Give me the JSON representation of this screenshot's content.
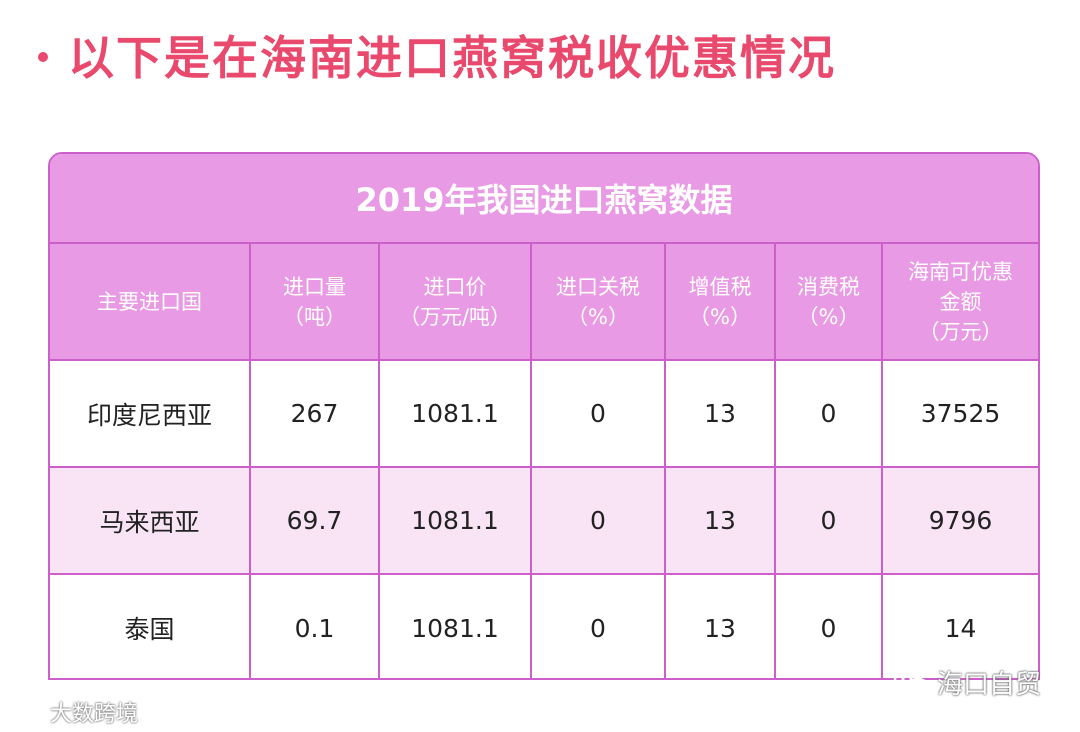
{
  "title": "以下是在海南进口燕窝税收优惠情况",
  "table": {
    "caption": "2019年我国进口燕窝数据",
    "headers": [
      [
        "主要进口国"
      ],
      [
        "进口量",
        "（吨）"
      ],
      [
        "进口价",
        "（万元/吨）"
      ],
      [
        "进口关税",
        "（%）"
      ],
      [
        "增值税",
        "（%）"
      ],
      [
        "消费税",
        "（%）"
      ],
      [
        "海南可优惠",
        "金额",
        "（万元）"
      ]
    ],
    "rows": [
      [
        "印度尼西亚",
        "267",
        "1081.1",
        "0",
        "13",
        "0",
        "37525"
      ],
      [
        "马来西亚",
        "69.7",
        "1081.1",
        "0",
        "13",
        "0",
        "9796"
      ],
      [
        "泰国",
        "0.1",
        "1081.1",
        "0",
        "13",
        "0",
        "14"
      ]
    ]
  },
  "watermarks": {
    "left": "大数跨境",
    "right": "海口自贸",
    "left_icon": "brand-logo-icon",
    "right_icon": "wechat-icon"
  },
  "colors": {
    "title": "#e8496d",
    "header_bg": "#e99ae4",
    "border": "#cc5fc9",
    "alt_row": "#f8e4f5"
  }
}
